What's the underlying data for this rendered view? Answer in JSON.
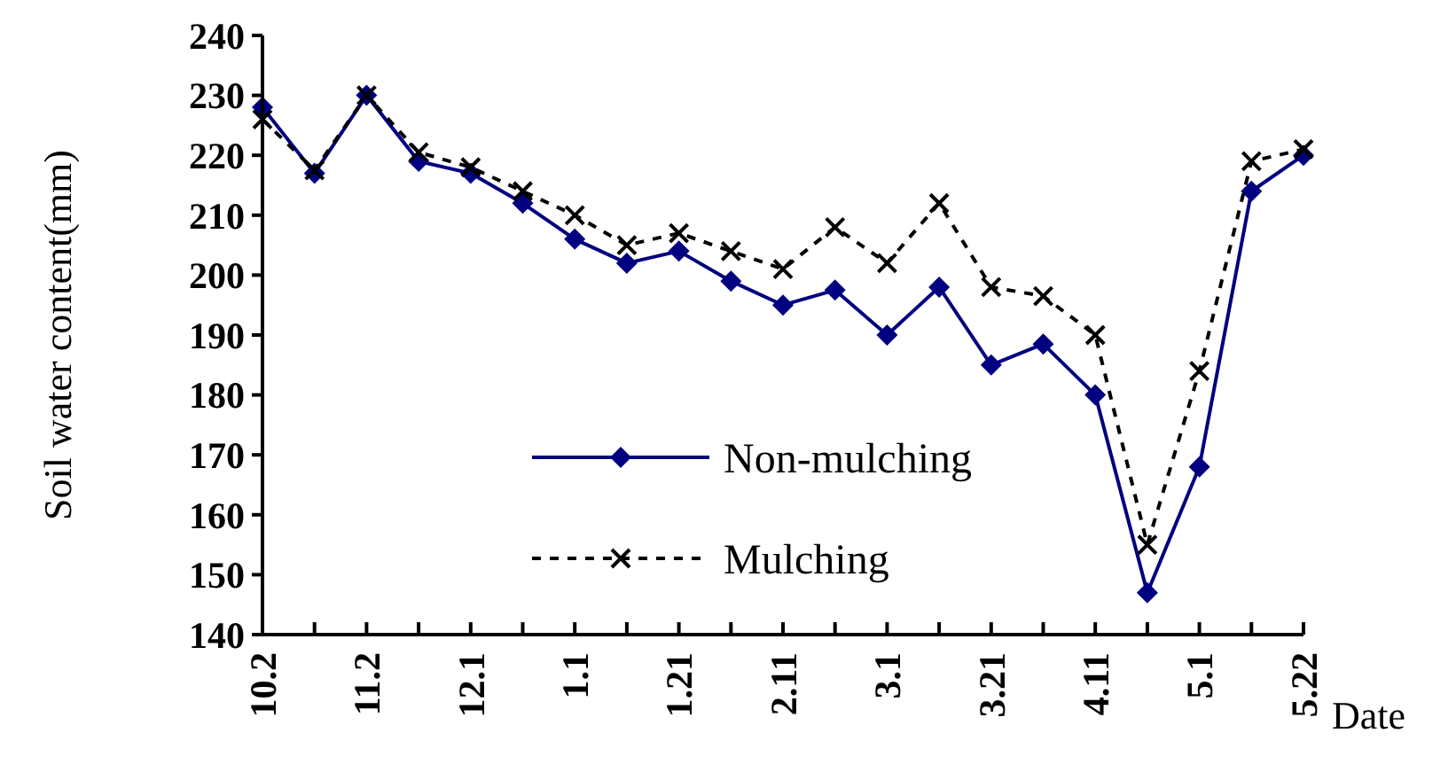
{
  "chart_data": {
    "type": "line",
    "xlabel": "Date",
    "ylabel": "Soil water content(mm)",
    "categories": [
      "10.2",
      null,
      "11.2",
      null,
      "12.1",
      null,
      "1.1",
      null,
      "1.21",
      null,
      "2.11",
      null,
      "3.1",
      null,
      "3.21",
      null,
      "4.11",
      null,
      "5.1",
      null,
      "5.22"
    ],
    "series": [
      {
        "name": "Non-mulching",
        "color": "#000080",
        "marker": "diamond",
        "line_style": "solid",
        "values": [
          228,
          217,
          230,
          219,
          217,
          212,
          206,
          202,
          204,
          199,
          195,
          197.5,
          190,
          198,
          185,
          188.5,
          180,
          147,
          168,
          214,
          220
        ]
      },
      {
        "name": "Mulching",
        "color": "#000000",
        "marker": "cross",
        "line_style": "dashed",
        "values": [
          226,
          217.5,
          230,
          220.5,
          218,
          214,
          210,
          205,
          207,
          204,
          201,
          208,
          202,
          212,
          198,
          196.5,
          190,
          155,
          184,
          219,
          221
        ]
      }
    ],
    "ylim": [
      140,
      240
    ],
    "yticks": [
      140,
      150,
      160,
      170,
      180,
      190,
      200,
      210,
      220,
      230,
      240
    ],
    "grid": false,
    "legend": "bottom"
  }
}
